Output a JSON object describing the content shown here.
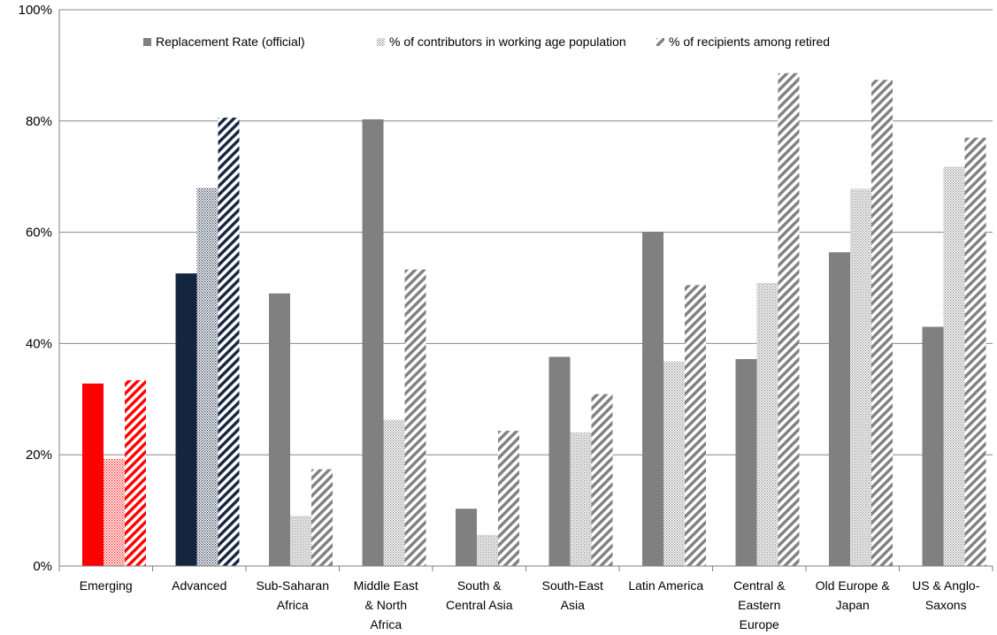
{
  "chart_data": {
    "type": "bar",
    "title": "",
    "xlabel": "",
    "ylabel": "",
    "ylim": [
      0,
      100
    ],
    "yticks": [
      0,
      20,
      40,
      60,
      80,
      100
    ],
    "ytick_labels": [
      "0%",
      "20%",
      "40%",
      "60%",
      "80%",
      "100%"
    ],
    "grid": true,
    "legend_position": "top",
    "categories": [
      [
        "Emerging"
      ],
      [
        "Advanced"
      ],
      [
        "Sub-Saharan",
        "Africa"
      ],
      [
        "Middle East",
        "& North",
        "Africa"
      ],
      [
        "South &",
        "Central Asia"
      ],
      [
        "South-East",
        "Asia"
      ],
      [
        "Latin America"
      ],
      [
        "Central &",
        "Eastern",
        "Europe"
      ],
      [
        "Old Europe &",
        "Japan"
      ],
      [
        "US & Anglo-",
        "Saxons"
      ]
    ],
    "series": [
      {
        "name": "Replacement Rate (official)",
        "pattern": "solid",
        "values": [
          32.8,
          52.6,
          49.0,
          80.3,
          10.3,
          37.6,
          60.1,
          37.2,
          56.4,
          43.0
        ]
      },
      {
        "name": "% of contributors in working age population",
        "pattern": "dots",
        "values": [
          19.3,
          68.0,
          9.0,
          26.3,
          5.6,
          24.0,
          36.8,
          50.9,
          67.8,
          71.8
        ]
      },
      {
        "name": "% of recipients among retired",
        "pattern": "stripes",
        "values": [
          33.4,
          80.6,
          17.4,
          53.3,
          24.3,
          30.9,
          50.5,
          88.6,
          87.4,
          77.0
        ]
      }
    ],
    "colors": {
      "default": "#808080",
      "highlight": {
        "0": "#ff0000",
        "1": "#14253f"
      },
      "grid": "#878787",
      "axis": "#7f7f7f"
    }
  }
}
